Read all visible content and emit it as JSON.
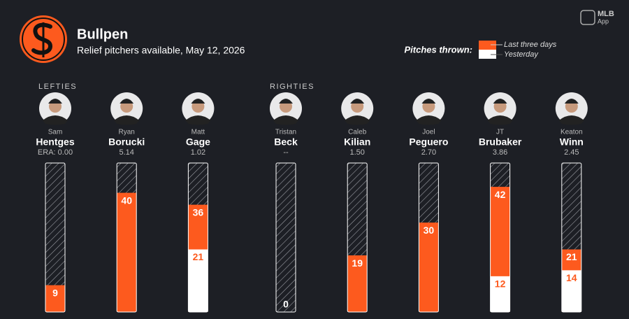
{
  "chart_data": {
    "type": "bullpen",
    "title": "Bullpen",
    "subtitle": "Relief pitchers available, May 12, 2026",
    "brand": [
      "MLB",
      "App"
    ],
    "legend_title": "Pitches thrown:",
    "series": [
      {
        "name": "Last three days",
        "color": "#fd5a1e"
      },
      {
        "name": "Yesterday",
        "color": "#ffffff"
      }
    ],
    "ylim": [
      0,
      50
    ],
    "groups": [
      {
        "label": "LEFTIES",
        "pitchers": [
          {
            "first": "Sam",
            "last": "Hentges",
            "era": "ERA: 0.00",
            "last_three_days": 9,
            "yesterday": null
          },
          {
            "first": "Ryan",
            "last": "Borucki",
            "era": "5.14",
            "last_three_days": 40,
            "yesterday": null
          },
          {
            "first": "Matt",
            "last": "Gage",
            "era": "1.02",
            "last_three_days": 36,
            "yesterday": 21
          }
        ]
      },
      {
        "label": "RIGHTIES",
        "pitchers": [
          {
            "first": "Tristan",
            "last": "Beck",
            "era": "--",
            "last_three_days": 0,
            "yesterday": null
          },
          {
            "first": "Caleb",
            "last": "Kilian",
            "era": "1.50",
            "last_three_days": 19,
            "yesterday": null
          },
          {
            "first": "Joel",
            "last": "Peguero",
            "era": "2.70",
            "last_three_days": 30,
            "yesterday": null
          },
          {
            "first": "JT",
            "last": "Brubaker",
            "era": "3.86",
            "last_three_days": 42,
            "yesterday": 12
          },
          {
            "first": "Keaton",
            "last": "Winn",
            "era": "2.45",
            "last_three_days": 21,
            "yesterday": 14
          }
        ]
      }
    ]
  }
}
